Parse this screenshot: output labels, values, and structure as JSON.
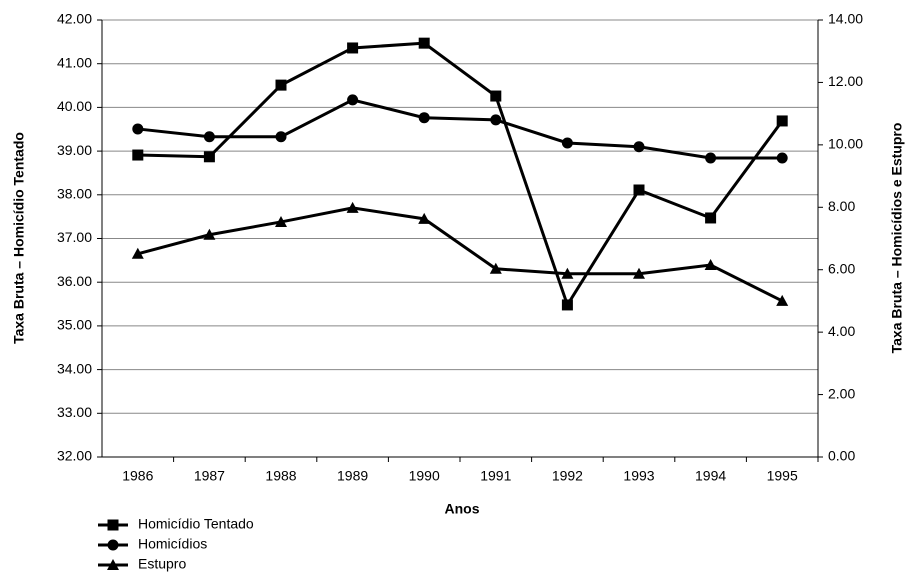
{
  "chart_data": {
    "type": "line",
    "x_label": "Anos",
    "y_label": "Taxa Bruta – Homicídio Tentado",
    "y2_label": "Taxa Bruta – Homicídios e Estupro",
    "categories": [
      "1986",
      "1987",
      "1988",
      "1989",
      "1990",
      "1991",
      "1992",
      "1993",
      "1994",
      "1995"
    ],
    "series": [
      {
        "name": "Homicídio Tentado",
        "color": "#000000",
        "marker": "square",
        "axis": "y",
        "values": [
          38.91,
          38.87,
          40.51,
          41.36,
          41.47,
          40.26,
          35.48,
          38.11,
          37.47,
          39.69
        ]
      },
      {
        "name": "Homicídios",
        "color": "#000000",
        "marker": "circle",
        "axis": "y2",
        "values": [
          10.51,
          10.26,
          10.26,
          11.44,
          10.87,
          10.8,
          10.06,
          9.94,
          9.58,
          9.58
        ]
      },
      {
        "name": "Estupro",
        "color": "#000000",
        "marker": "triangle",
        "axis": "y2",
        "values": [
          6.51,
          7.12,
          7.53,
          7.98,
          7.63,
          6.03,
          5.87,
          5.87,
          6.15,
          5.0
        ]
      }
    ],
    "ylim": [
      32,
      42
    ],
    "yticks": [
      {
        "value": 32,
        "label": "32.00"
      },
      {
        "value": 33,
        "label": "33.00"
      },
      {
        "value": 34,
        "label": "34.00"
      },
      {
        "value": 35,
        "label": "35.00"
      },
      {
        "value": 36,
        "label": "36.00"
      },
      {
        "value": 37,
        "label": "37.00"
      },
      {
        "value": 38,
        "label": "38.00"
      },
      {
        "value": 39,
        "label": "39.00"
      },
      {
        "value": 40,
        "label": "40.00"
      },
      {
        "value": 41,
        "label": "41.00"
      },
      {
        "value": 42,
        "label": "42.00"
      }
    ],
    "y2lim": [
      0,
      14
    ],
    "y2ticks": [
      {
        "value": 0,
        "label": "0.00"
      },
      {
        "value": 2,
        "label": "2.00"
      },
      {
        "value": 4,
        "label": "4.00"
      },
      {
        "value": 6,
        "label": "6.00"
      },
      {
        "value": 8,
        "label": "8.00"
      },
      {
        "value": 10,
        "label": "10.00"
      },
      {
        "value": 12,
        "label": "12.00"
      },
      {
        "value": 14,
        "label": "14.00"
      }
    ],
    "grid": true,
    "legend": "bottom-left"
  }
}
